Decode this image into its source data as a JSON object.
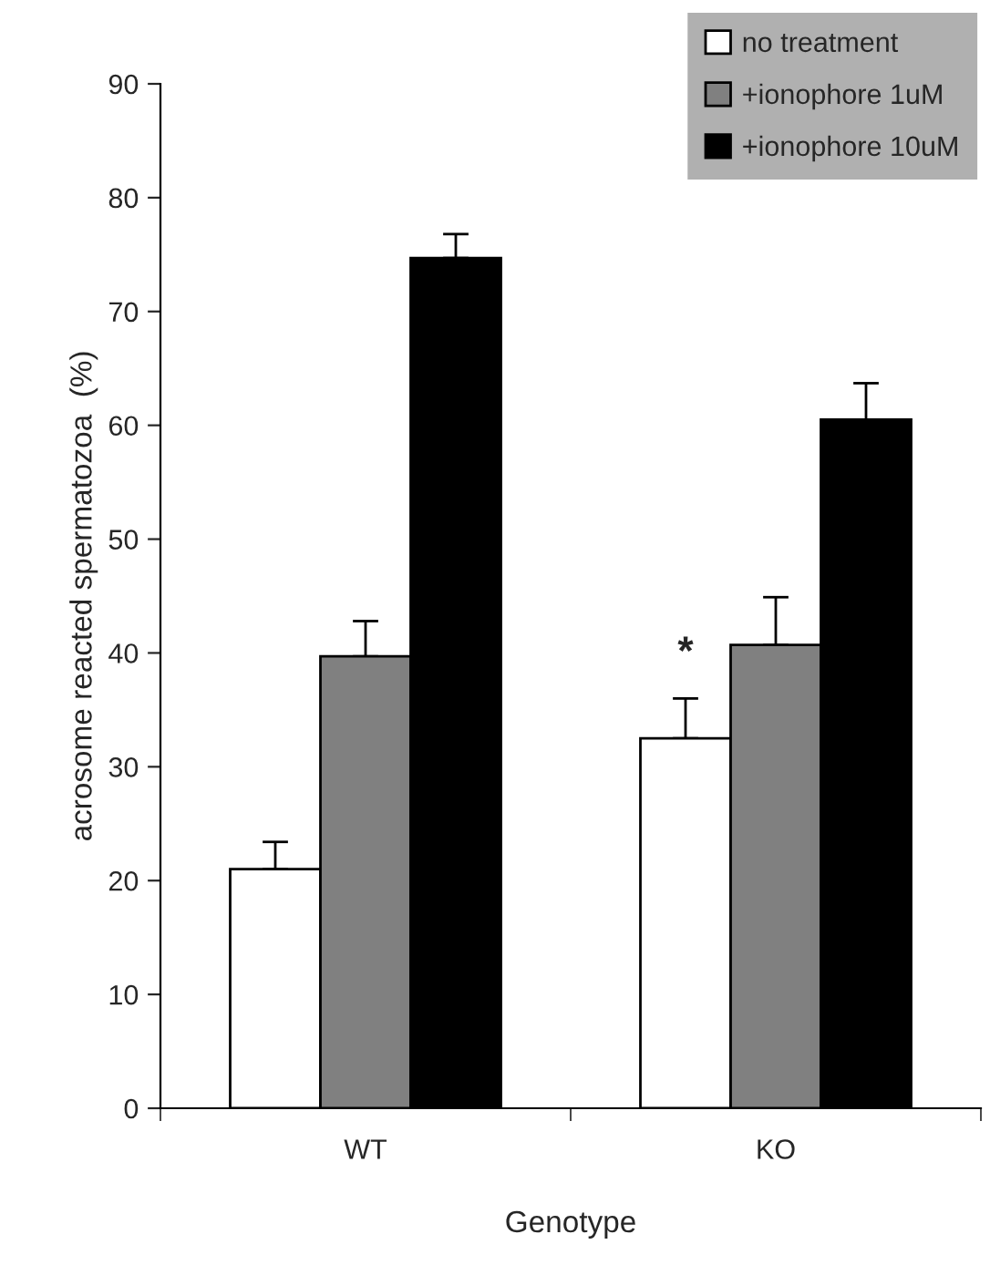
{
  "chart_data": {
    "type": "bar",
    "xlabel": "Genotype",
    "ylabel": "acrosome reacted spermatozoa  (%)",
    "categories": [
      "WT",
      "KO"
    ],
    "series": [
      {
        "name": "no treatment",
        "color": "#ffffff",
        "values": [
          21,
          32.5
        ],
        "errors": [
          [
            21,
            23.4
          ],
          [
            32.5,
            36
          ]
        ]
      },
      {
        "name": "+ionophore 1uM",
        "color": "#808080",
        "values": [
          39.7,
          40.7
        ],
        "errors": [
          [
            39.7,
            42.8
          ],
          [
            40.7,
            44.9
          ]
        ]
      },
      {
        "name": "+ionophore 10uM",
        "color": "#000000",
        "values": [
          74.7,
          60.5
        ],
        "errors": [
          [
            74.7,
            76.8
          ],
          [
            60.5,
            63.7
          ]
        ]
      }
    ],
    "ylim": [
      0,
      90
    ],
    "yticks": [
      0,
      10,
      20,
      30,
      40,
      50,
      60,
      70,
      80,
      90
    ],
    "annotations": [
      "*"
    ],
    "grid": false,
    "legend": "top right"
  }
}
